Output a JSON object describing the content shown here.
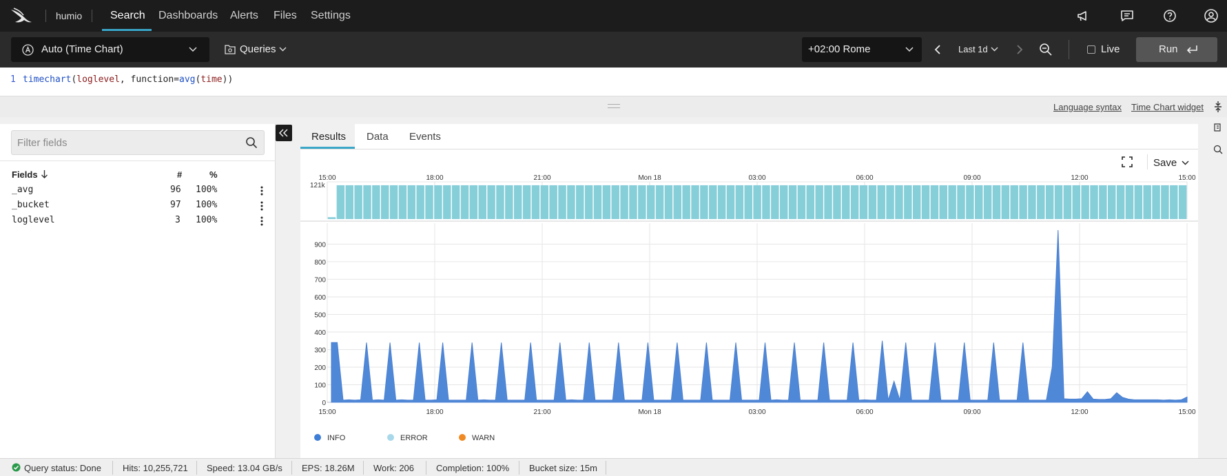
{
  "nav": {
    "brand": "humio",
    "items": [
      "Search",
      "Dashboards",
      "Alerts",
      "Files",
      "Settings"
    ]
  },
  "toolbar": {
    "widget_selector": "Auto (Time Chart)",
    "queries_label": "Queries",
    "timezone": "+02:00 Rome",
    "time_range": "Last 1d",
    "live_label": "Live",
    "run_label": "Run"
  },
  "editor": {
    "line_number": "1",
    "code_parts": [
      "timechart",
      "(",
      "loglevel",
      ", function=",
      "avg",
      "(",
      "time",
      "))"
    ]
  },
  "editor_links": {
    "language_syntax": "Language syntax",
    "widget_docs": "Time Chart widget"
  },
  "fields_panel": {
    "filter_placeholder": "Filter fields",
    "header": {
      "name": "Fields",
      "count": "#",
      "percent": "%"
    },
    "rows": [
      {
        "name": "_avg",
        "count": "96",
        "percent": "100%"
      },
      {
        "name": "_bucket",
        "count": "97",
        "percent": "100%"
      },
      {
        "name": "loglevel",
        "count": "3",
        "percent": "100%"
      }
    ]
  },
  "tabs": [
    "Results",
    "Data",
    "Events"
  ],
  "results": {
    "save_label": "Save"
  },
  "colors": {
    "accent": "#3aa6c8",
    "info": "#3f7ed6",
    "error": "#a8d8ea",
    "warn": "#f08a24",
    "histogram": "#86cfd9",
    "area": "#5088d8"
  },
  "chart_data": [
    {
      "type": "bar",
      "y_tick_label": "121k",
      "x_tick_labels": [
        "15:00",
        "18:00",
        "21:00",
        "Mon 18",
        "03:00",
        "06:00",
        "09:00",
        "12:00",
        "15:00"
      ],
      "ylim": [
        0,
        121000
      ],
      "values": [
        6000,
        110000,
        110000,
        110000,
        110000,
        110000,
        110000,
        110000,
        110000,
        110000,
        110000,
        110000,
        110000,
        110000,
        110000,
        110000,
        110000,
        110000,
        110000,
        110000,
        110000,
        110000,
        110000,
        110000,
        110000,
        110000,
        110000,
        110000,
        110000,
        110000,
        110000,
        110000,
        110000,
        110000,
        110000,
        110000,
        110000,
        110000,
        110000,
        110000,
        110000,
        110000,
        110000,
        110000,
        110000,
        110000,
        110000,
        110000,
        110000,
        110000,
        110000,
        110000,
        110000,
        110000,
        110000,
        110000,
        110000,
        110000,
        110000,
        110000,
        110000,
        110000,
        110000,
        110000,
        110000,
        110000,
        110000,
        110000,
        110000,
        110000,
        110000,
        110000,
        110000,
        110000,
        110000,
        110000,
        110000,
        110000,
        110000,
        110000,
        110000,
        110000,
        110000,
        110000,
        110000,
        110000,
        110000,
        110000,
        110000,
        110000,
        110000,
        110000,
        110000,
        110000,
        110000,
        110000,
        110000
      ]
    },
    {
      "type": "area",
      "x_tick_labels": [
        "15:00",
        "18:00",
        "21:00",
        "Mon 18",
        "03:00",
        "06:00",
        "09:00",
        "12:00",
        "15:00"
      ],
      "y_ticks": [
        0,
        100,
        200,
        300,
        400,
        500,
        600,
        700,
        800,
        900
      ],
      "ylim": [
        0,
        980
      ],
      "grid": true,
      "legend_position": "bottom-left",
      "series": [
        {
          "name": "INFO",
          "values": [
            340,
            340,
            12,
            14,
            12,
            14,
            340,
            12,
            14,
            12,
            340,
            12,
            14,
            12,
            12,
            340,
            12,
            12,
            14,
            340,
            12,
            12,
            12,
            12,
            340,
            12,
            14,
            12,
            12,
            340,
            12,
            12,
            12,
            12,
            340,
            12,
            12,
            12,
            12,
            340,
            12,
            14,
            12,
            12,
            340,
            12,
            12,
            12,
            12,
            340,
            12,
            12,
            12,
            12,
            340,
            12,
            12,
            12,
            12,
            340,
            12,
            12,
            12,
            12,
            340,
            12,
            12,
            12,
            12,
            340,
            12,
            12,
            12,
            12,
            340,
            12,
            14,
            12,
            12,
            340,
            12,
            12,
            12,
            12,
            340,
            12,
            12,
            12,
            12,
            340,
            12,
            14,
            12,
            12,
            350,
            12,
            120,
            12,
            340,
            12,
            12,
            12,
            12,
            340,
            12,
            12,
            12,
            12,
            340,
            12,
            12,
            12,
            12,
            340,
            12,
            12,
            12,
            12,
            340,
            12,
            12,
            12,
            12,
            200,
            980,
            20,
            18,
            18,
            20,
            60,
            18,
            16,
            16,
            20,
            55,
            28,
            18,
            14,
            14,
            14,
            14,
            14,
            12,
            14,
            12,
            14,
            30
          ]
        },
        {
          "name": "ERROR",
          "values": []
        },
        {
          "name": "WARN",
          "values": []
        }
      ]
    }
  ],
  "status": {
    "query_status": "Query status: Done",
    "hits": "Hits: 10,255,721",
    "speed": "Speed: 13.04 GB/s",
    "eps": "EPS: 18.26M",
    "work": "Work: 206",
    "completion": "Completion: 100%",
    "bucket_size": "Bucket size: 15m"
  }
}
